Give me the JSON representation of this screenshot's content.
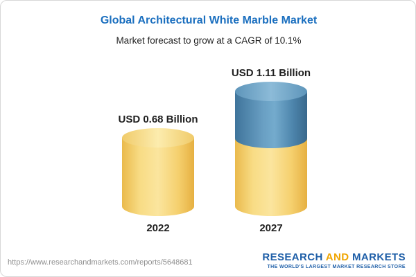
{
  "header": {
    "title": "Global Architectural White Marble Market",
    "subtitle": "Market forecast to grow at a CAGR of 10.1%"
  },
  "chart_data": {
    "type": "bar",
    "categories": [
      "2022",
      "2027"
    ],
    "values": [
      0.68,
      1.11
    ],
    "value_unit": "USD Billion",
    "value_labels": [
      "USD 0.68 Billion",
      "USD 1.11 Billion"
    ],
    "title": "Global Architectural White Marble Market",
    "subtitle": "Market forecast to grow at a CAGR of 10.1%",
    "cagr": "10.1%",
    "xlabel": "",
    "ylabel": "",
    "legend": "none",
    "grid": false,
    "colors": {
      "base_segment": "#f5d06e",
      "growth_segment": "#5f97bc",
      "title": "#1b6fbf",
      "label_text": "#1f1f1f"
    },
    "notes": "2027 bar shows base value in yellow plus incremental growth segment in blue on top"
  },
  "footer": {
    "url": "https://www.researchandmarkets.com/reports/5648681",
    "logo": {
      "word1": "RESEARCH",
      "word2": "AND",
      "word3": "MARKETS",
      "tagline": "THE WORLD'S LARGEST MARKET RESEARCH STORE"
    }
  }
}
